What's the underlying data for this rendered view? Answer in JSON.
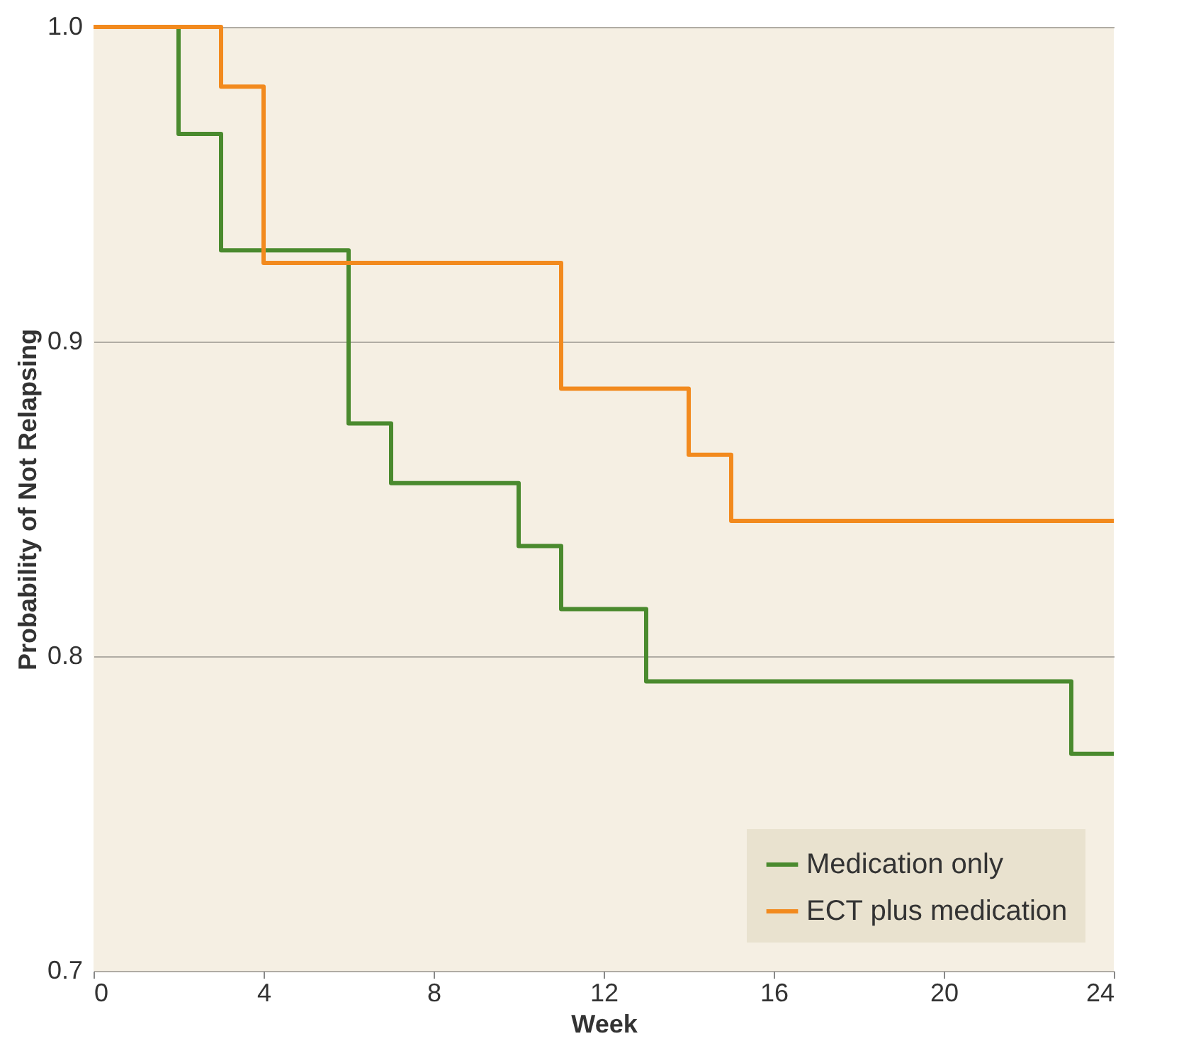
{
  "chart_data": {
    "type": "step",
    "xlabel": "Week",
    "ylabel": "Probability of Not Relapsing",
    "xlim": [
      0,
      24
    ],
    "xticks": [
      0,
      4,
      8,
      12,
      16,
      20,
      24
    ],
    "ylim": [
      0.7,
      1.0
    ],
    "yticks": [
      {
        "value": 0.7,
        "label": "0.7"
      },
      {
        "value": 0.8,
        "label": "0.8"
      },
      {
        "value": 0.9,
        "label": "0.9"
      },
      {
        "value": 1.0,
        "label": "1.0"
      }
    ],
    "grid": "y",
    "legend": "bottom right",
    "line_style": "solid",
    "marker": "none",
    "series": [
      {
        "name": "Medication only",
        "color": "#4a8a2e",
        "x": [
          0,
          2,
          3,
          6,
          7,
          10,
          11,
          13,
          23,
          24
        ],
        "values": [
          1.0,
          0.966,
          0.929,
          0.874,
          0.855,
          0.835,
          0.815,
          0.792,
          0.769,
          0.769
        ]
      },
      {
        "name": "ECT plus medication",
        "color": "#f28a1e",
        "x": [
          0,
          3,
          4,
          11,
          14,
          15,
          24
        ],
        "values": [
          1.0,
          0.981,
          0.925,
          0.885,
          0.864,
          0.843,
          0.843
        ]
      }
    ]
  }
}
